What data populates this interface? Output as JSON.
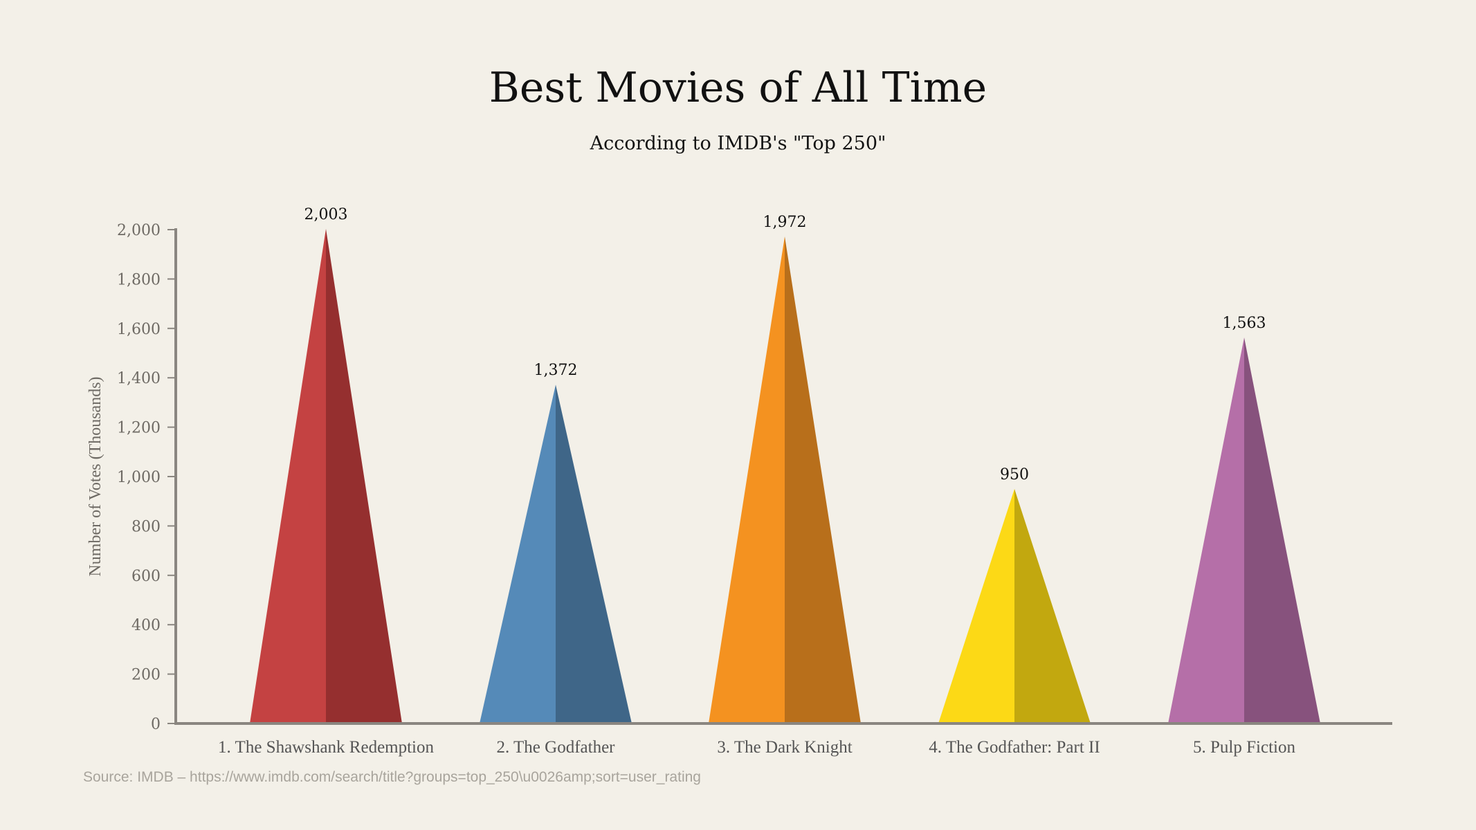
{
  "chart_data": {
    "type": "bar",
    "mark": "triangle",
    "title": "Best Movies of All Time",
    "subtitle": "According to IMDB's \"Top 250\"",
    "xlabel": "",
    "ylabel": "Number of Votes (Thousands)",
    "ylim": [
      0,
      2000
    ],
    "yticks": [
      "0",
      "200",
      "400",
      "600",
      "800",
      "1,000",
      "1,200",
      "1,400",
      "1,600",
      "1,800",
      "2,000"
    ],
    "grid": false,
    "categories": [
      "1. The Shawshank Redemption",
      "2. The Godfather",
      "3. The Dark Knight",
      "4. The Godfather: Part II",
      "5. Pulp Fiction"
    ],
    "values": [
      2003,
      1372,
      1972,
      950,
      1563
    ],
    "value_labels": [
      "2,003",
      "1,372",
      "1,972",
      "950",
      "1,563"
    ],
    "colors": [
      {
        "light": "#c44242",
        "dark": "#952f2f"
      },
      {
        "light": "#558ab8",
        "dark": "#3f6688"
      },
      {
        "light": "#f49220",
        "dark": "#b86f1b"
      },
      {
        "light": "#fcd916",
        "dark": "#c2a80f"
      },
      {
        "light": "#b56fa8",
        "dark": "#87527d"
      }
    ],
    "source": "Source: IMDB – https://www.imdb.com/search/title?groups=top_250\\u0026amp;sort=user_rating"
  }
}
